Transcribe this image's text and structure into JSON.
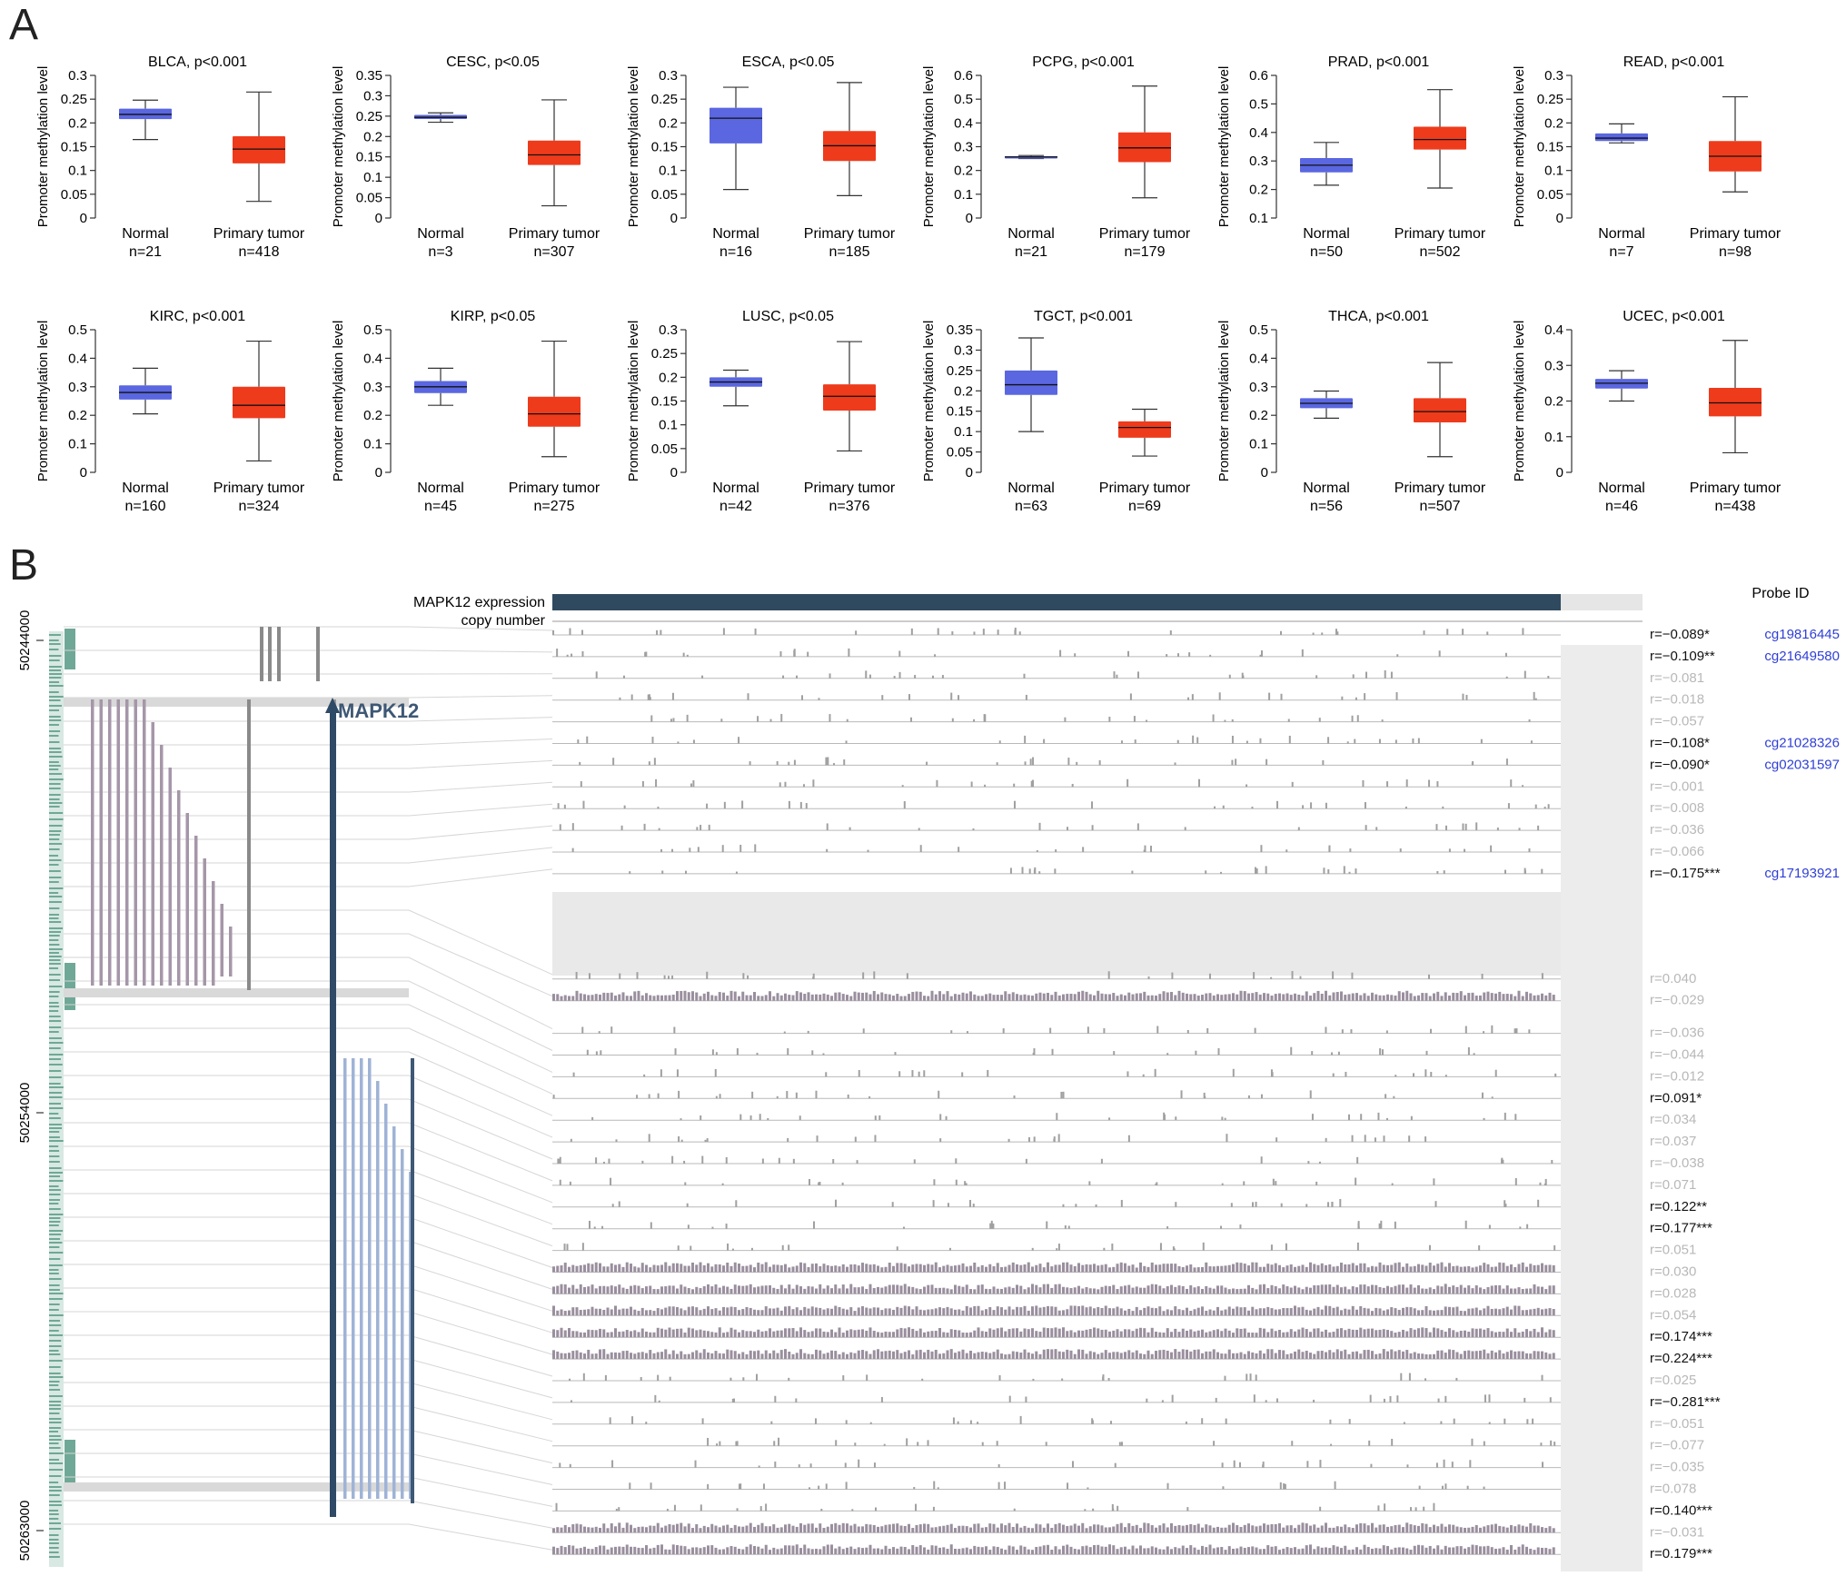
{
  "panels": {
    "a_label": "A",
    "b_label": "B"
  },
  "chart_data": [
    {
      "type": "boxplot",
      "title": "BLCA, p<0.001",
      "ylabel": "Promoter methylation level",
      "ylim": [
        0,
        0.3
      ],
      "yticks": [
        "0",
        "0.05",
        "0.1",
        "0.15",
        "0.2",
        "0.25",
        "0.3"
      ],
      "categories": [
        "Normal",
        "Primary tumor"
      ],
      "n_labels": [
        "n=21",
        "n=418"
      ],
      "boxes": [
        {
          "min": 0.165,
          "q1": 0.208,
          "median": 0.218,
          "q3": 0.23,
          "max": 0.248
        },
        {
          "min": 0.035,
          "q1": 0.115,
          "median": 0.145,
          "q3": 0.172,
          "max": 0.265
        }
      ]
    },
    {
      "type": "boxplot",
      "title": "CESC, p<0.05",
      "ylabel": "Promoter methylation level",
      "ylim": [
        0,
        0.35
      ],
      "yticks": [
        "0",
        "0.05",
        "0.1",
        "0.15",
        "0.2",
        "0.25",
        "0.3",
        "0.35"
      ],
      "categories": [
        "Normal",
        "Primary tumor"
      ],
      "n_labels": [
        "n=3",
        "n=307"
      ],
      "boxes": [
        {
          "min": 0.235,
          "q1": 0.243,
          "median": 0.247,
          "q3": 0.253,
          "max": 0.258
        },
        {
          "min": 0.03,
          "q1": 0.13,
          "median": 0.155,
          "q3": 0.19,
          "max": 0.29
        }
      ]
    },
    {
      "type": "boxplot",
      "title": "ESCA, p<0.05",
      "ylabel": "Promoter methylation level",
      "ylim": [
        0,
        0.3
      ],
      "yticks": [
        "0",
        "0.05",
        "0.1",
        "0.15",
        "0.2",
        "0.25",
        "0.3"
      ],
      "categories": [
        "Normal",
        "Primary tumor"
      ],
      "n_labels": [
        "n=16",
        "n=185"
      ],
      "boxes": [
        {
          "min": 0.06,
          "q1": 0.157,
          "median": 0.21,
          "q3": 0.232,
          "max": 0.275
        },
        {
          "min": 0.047,
          "q1": 0.12,
          "median": 0.152,
          "q3": 0.183,
          "max": 0.285
        }
      ]
    },
    {
      "type": "boxplot",
      "title": "PCPG, p<0.001",
      "ylabel": "Promoter methylation level",
      "ylim": [
        0,
        0.6
      ],
      "yticks": [
        "0",
        "0.1",
        "0.2",
        "0.3",
        "0.4",
        "0.5",
        "0.6"
      ],
      "categories": [
        "Normal",
        "Primary tumor"
      ],
      "n_labels": [
        "n=21",
        "n=179"
      ],
      "boxes": [
        {
          "min": 0.25,
          "q1": 0.253,
          "median": 0.257,
          "q3": 0.26,
          "max": 0.263
        },
        {
          "min": 0.085,
          "q1": 0.235,
          "median": 0.295,
          "q3": 0.36,
          "max": 0.555
        }
      ]
    },
    {
      "type": "boxplot",
      "title": "PRAD, p<0.001",
      "ylabel": "Promoter methylation level",
      "ylim": [
        0.1,
        0.6
      ],
      "yticks": [
        "0.1",
        "0.2",
        "0.3",
        "0.4",
        "0.5",
        "0.6"
      ],
      "categories": [
        "Normal",
        "Primary tumor"
      ],
      "n_labels": [
        "n=50",
        "n=502"
      ],
      "boxes": [
        {
          "min": 0.215,
          "q1": 0.26,
          "median": 0.285,
          "q3": 0.31,
          "max": 0.365
        },
        {
          "min": 0.205,
          "q1": 0.34,
          "median": 0.375,
          "q3": 0.42,
          "max": 0.55
        }
      ]
    },
    {
      "type": "boxplot",
      "title": "READ, p<0.001",
      "ylabel": "Promoter methylation level",
      "ylim": [
        0,
        0.3
      ],
      "yticks": [
        "0",
        "0.05",
        "0.1",
        "0.15",
        "0.2",
        "0.25",
        "0.3"
      ],
      "categories": [
        "Normal",
        "Primary tumor"
      ],
      "n_labels": [
        "n=7",
        "n=98"
      ],
      "boxes": [
        {
          "min": 0.158,
          "q1": 0.162,
          "median": 0.168,
          "q3": 0.178,
          "max": 0.198
        },
        {
          "min": 0.055,
          "q1": 0.098,
          "median": 0.13,
          "q3": 0.162,
          "max": 0.255
        }
      ]
    },
    {
      "type": "boxplot",
      "title": "KIRC, p<0.001",
      "ylabel": "Promoter methylation level",
      "ylim": [
        0,
        0.5
      ],
      "yticks": [
        "0",
        "0.1",
        "0.2",
        "0.3",
        "0.4",
        "0.5"
      ],
      "categories": [
        "Normal",
        "Primary tumor"
      ],
      "n_labels": [
        "n=160",
        "n=324"
      ],
      "boxes": [
        {
          "min": 0.205,
          "q1": 0.255,
          "median": 0.28,
          "q3": 0.305,
          "max": 0.365
        },
        {
          "min": 0.04,
          "q1": 0.19,
          "median": 0.235,
          "q3": 0.3,
          "max": 0.46
        }
      ]
    },
    {
      "type": "boxplot",
      "title": "KIRP, p<0.05",
      "ylabel": "Promoter methylation level",
      "ylim": [
        0,
        0.5
      ],
      "yticks": [
        "0",
        "0.1",
        "0.2",
        "0.3",
        "0.4",
        "0.5"
      ],
      "categories": [
        "Normal",
        "Primary tumor"
      ],
      "n_labels": [
        "n=45",
        "n=275"
      ],
      "boxes": [
        {
          "min": 0.235,
          "q1": 0.278,
          "median": 0.3,
          "q3": 0.32,
          "max": 0.365
        },
        {
          "min": 0.055,
          "q1": 0.16,
          "median": 0.205,
          "q3": 0.265,
          "max": 0.46
        }
      ]
    },
    {
      "type": "boxplot",
      "title": "LUSC, p<0.05",
      "ylabel": "Promoter methylation level",
      "ylim": [
        0,
        0.3
      ],
      "yticks": [
        "0",
        "0.05",
        "0.1",
        "0.15",
        "0.2",
        "0.25",
        "0.3"
      ],
      "categories": [
        "Normal",
        "Primary tumor"
      ],
      "n_labels": [
        "n=42",
        "n=376"
      ],
      "boxes": [
        {
          "min": 0.14,
          "q1": 0.18,
          "median": 0.19,
          "q3": 0.2,
          "max": 0.215
        },
        {
          "min": 0.045,
          "q1": 0.13,
          "median": 0.16,
          "q3": 0.185,
          "max": 0.275
        }
      ]
    },
    {
      "type": "boxplot",
      "title": "TGCT, p<0.001",
      "ylabel": "Promoter methylation level",
      "ylim": [
        0,
        0.35
      ],
      "yticks": [
        "0",
        "0.05",
        "0.1",
        "0.15",
        "0.2",
        "0.25",
        "0.3",
        "0.35"
      ],
      "categories": [
        "Normal",
        "Primary tumor"
      ],
      "n_labels": [
        "n=63",
        "n=69"
      ],
      "boxes": [
        {
          "min": 0.1,
          "q1": 0.19,
          "median": 0.215,
          "q3": 0.25,
          "max": 0.33
        },
        {
          "min": 0.04,
          "q1": 0.085,
          "median": 0.11,
          "q3": 0.125,
          "max": 0.155
        }
      ]
    },
    {
      "type": "boxplot",
      "title": "THCA, p<0.001",
      "ylabel": "Promoter methylation level",
      "ylim": [
        0,
        0.5
      ],
      "yticks": [
        "0",
        "0.1",
        "0.2",
        "0.3",
        "0.4",
        "0.5"
      ],
      "categories": [
        "Normal",
        "Primary tumor"
      ],
      "n_labels": [
        "n=56",
        "n=507"
      ],
      "boxes": [
        {
          "min": 0.19,
          "q1": 0.225,
          "median": 0.242,
          "q3": 0.26,
          "max": 0.285
        },
        {
          "min": 0.055,
          "q1": 0.175,
          "median": 0.213,
          "q3": 0.26,
          "max": 0.385
        }
      ]
    },
    {
      "type": "boxplot",
      "title": "UCEC, p<0.001",
      "ylabel": "Promoter methylation level",
      "ylim": [
        0,
        0.4
      ],
      "yticks": [
        "0",
        "0.1",
        "0.2",
        "0.3",
        "0.4"
      ],
      "categories": [
        "Normal",
        "Primary tumor"
      ],
      "n_labels": [
        "n=46",
        "n=438"
      ],
      "boxes": [
        {
          "min": 0.2,
          "q1": 0.235,
          "median": 0.25,
          "q3": 0.262,
          "max": 0.285
        },
        {
          "min": 0.055,
          "q1": 0.157,
          "median": 0.195,
          "q3": 0.237,
          "max": 0.37
        }
      ]
    }
  ],
  "panel_b": {
    "gene_label": "MAPK12",
    "track_labels": [
      "MAPK12 expression",
      "copy number"
    ],
    "probe_header": "Probe ID",
    "genomic_ticks": [
      "50244000",
      "50254000",
      "50263000"
    ],
    "rows": [
      {
        "r": "r=−0.089*",
        "sig": true,
        "probe": "cg19816445"
      },
      {
        "r": "r=−0.109**",
        "sig": true,
        "probe": "cg21649580"
      },
      {
        "r": "r=−0.081",
        "sig": false,
        "probe": ""
      },
      {
        "r": "r=−0.018",
        "sig": false,
        "probe": ""
      },
      {
        "r": "r=−0.057",
        "sig": false,
        "probe": ""
      },
      {
        "r": "r=−0.108*",
        "sig": true,
        "probe": "cg21028326"
      },
      {
        "r": "r=−0.090*",
        "sig": true,
        "probe": "cg02031597"
      },
      {
        "r": "r=−0.001",
        "sig": false,
        "probe": ""
      },
      {
        "r": "r=−0.008",
        "sig": false,
        "probe": ""
      },
      {
        "r": "r=−0.036",
        "sig": false,
        "probe": ""
      },
      {
        "r": "r=−0.066",
        "sig": false,
        "probe": ""
      },
      {
        "r": "r=−0.175***",
        "sig": true,
        "probe": "cg17193921"
      },
      {
        "r": "r=0.040",
        "sig": false,
        "probe": ""
      },
      {
        "r": "r=−0.029",
        "sig": false,
        "probe": ""
      },
      {
        "r": "r=−0.036",
        "sig": false,
        "probe": ""
      },
      {
        "r": "r=−0.044",
        "sig": false,
        "probe": ""
      },
      {
        "r": "r=−0.012",
        "sig": false,
        "probe": ""
      },
      {
        "r": "r=0.091*",
        "sig": true,
        "probe": ""
      },
      {
        "r": "r=0.034",
        "sig": false,
        "probe": ""
      },
      {
        "r": "r=0.037",
        "sig": false,
        "probe": ""
      },
      {
        "r": "r=−0.038",
        "sig": false,
        "probe": ""
      },
      {
        "r": "r=0.071",
        "sig": false,
        "probe": ""
      },
      {
        "r": "r=0.122**",
        "sig": true,
        "probe": ""
      },
      {
        "r": "r=0.177***",
        "sig": true,
        "probe": ""
      },
      {
        "r": "r=0.051",
        "sig": false,
        "probe": ""
      },
      {
        "r": "r=0.030",
        "sig": false,
        "probe": ""
      },
      {
        "r": "r=0.028",
        "sig": false,
        "probe": ""
      },
      {
        "r": "r=0.054",
        "sig": false,
        "probe": ""
      },
      {
        "r": "r=0.174***",
        "sig": true,
        "probe": ""
      },
      {
        "r": "r=0.224***",
        "sig": true,
        "probe": ""
      },
      {
        "r": "r=0.025",
        "sig": false,
        "probe": ""
      },
      {
        "r": "r=−0.281***",
        "sig": true,
        "probe": ""
      },
      {
        "r": "r=−0.051",
        "sig": false,
        "probe": ""
      },
      {
        "r": "r=−0.077",
        "sig": false,
        "probe": ""
      },
      {
        "r": "r=−0.035",
        "sig": false,
        "probe": ""
      },
      {
        "r": "r=0.078",
        "sig": false,
        "probe": ""
      },
      {
        "r": "r=0.140***",
        "sig": true,
        "probe": ""
      },
      {
        "r": "r=−0.031",
        "sig": false,
        "probe": ""
      },
      {
        "r": "r=0.179***",
        "sig": true,
        "probe": ""
      }
    ]
  },
  "colors": {
    "normal_box": "#5a67e0",
    "tumor_box": "#ee3b1c",
    "probe_link": "#2f3fd6",
    "gene_track": "#2e4a66",
    "transcript_pink": "#a596a8",
    "cpg_green": "#6fa896"
  }
}
